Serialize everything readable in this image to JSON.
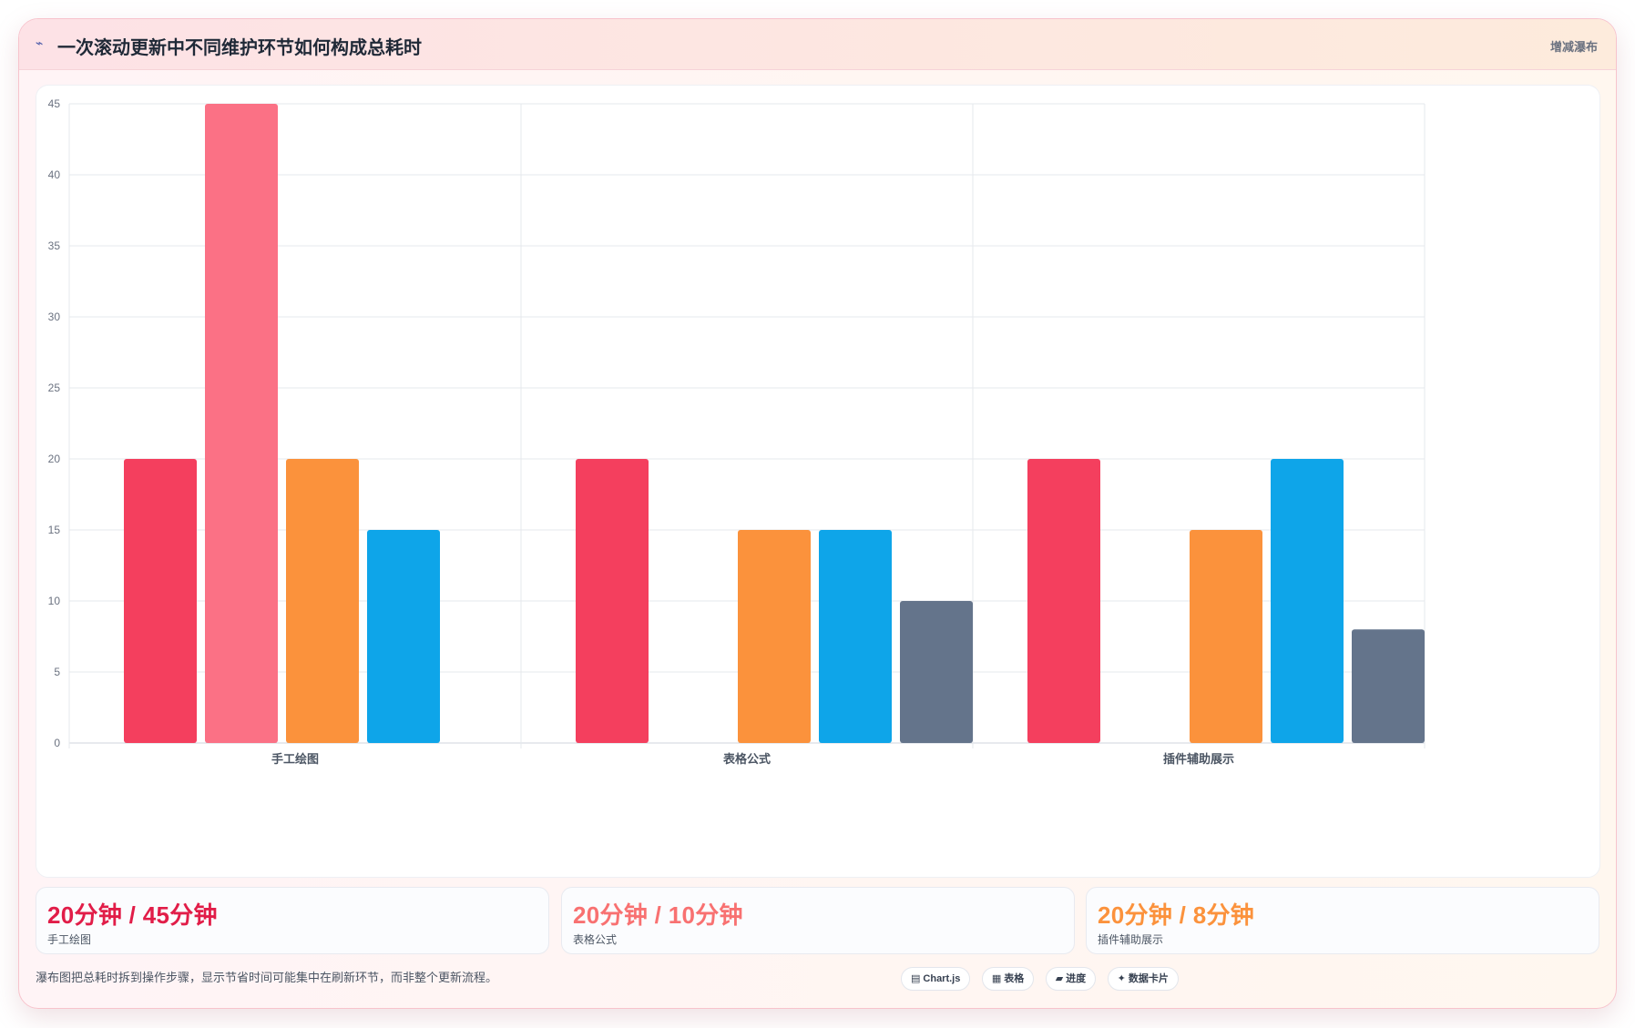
{
  "header": {
    "title_icon": "⌁",
    "title": "一次滚动更新中不同维护环节如何构成总耗时",
    "badge": "增减瀑布"
  },
  "chart_data": {
    "type": "bar",
    "title": "一次滚动更新中不同维护环节如何构成总耗时",
    "xlabel": "",
    "ylabel": "",
    "categories": [
      "手工绘图",
      "表格公式",
      "插件辅助展示"
    ],
    "ylim": [
      0,
      45
    ],
    "yticks": [
      0,
      5,
      10,
      15,
      20,
      25,
      30,
      35,
      40,
      45
    ],
    "grid": true,
    "legend": "none",
    "series": [
      {
        "color": "#f43f5e",
        "values": [
          20,
          20,
          20
        ]
      },
      {
        "color": "#fb7185",
        "values": [
          45,
          null,
          null
        ]
      },
      {
        "color": "#fb923c",
        "values": [
          20,
          15,
          15
        ]
      },
      {
        "color": "#0ea5e9",
        "values": [
          15,
          15,
          20
        ]
      },
      {
        "color": "#64748b",
        "values": [
          null,
          10,
          8
        ]
      }
    ]
  },
  "stats": [
    {
      "value": "20分钟 / 45分钟",
      "label": "手工绘图",
      "color": "#e11d48"
    },
    {
      "value": "20分钟 / 10分钟",
      "label": "表格公式",
      "color": "#f87171"
    },
    {
      "value": "20分钟 / 8分钟",
      "label": "插件辅助展示",
      "color": "#fb923c"
    }
  ],
  "footnote": "瀑布图把总耗时拆到操作步骤，显示节省时间可能集中在刷新环节，而非整个更新流程。",
  "chips": [
    {
      "icon": "▤",
      "label": "Chart.js"
    },
    {
      "icon": "▦",
      "label": "表格"
    },
    {
      "icon": "▰",
      "label": "进度"
    },
    {
      "icon": "✦",
      "label": "数据卡片"
    }
  ]
}
